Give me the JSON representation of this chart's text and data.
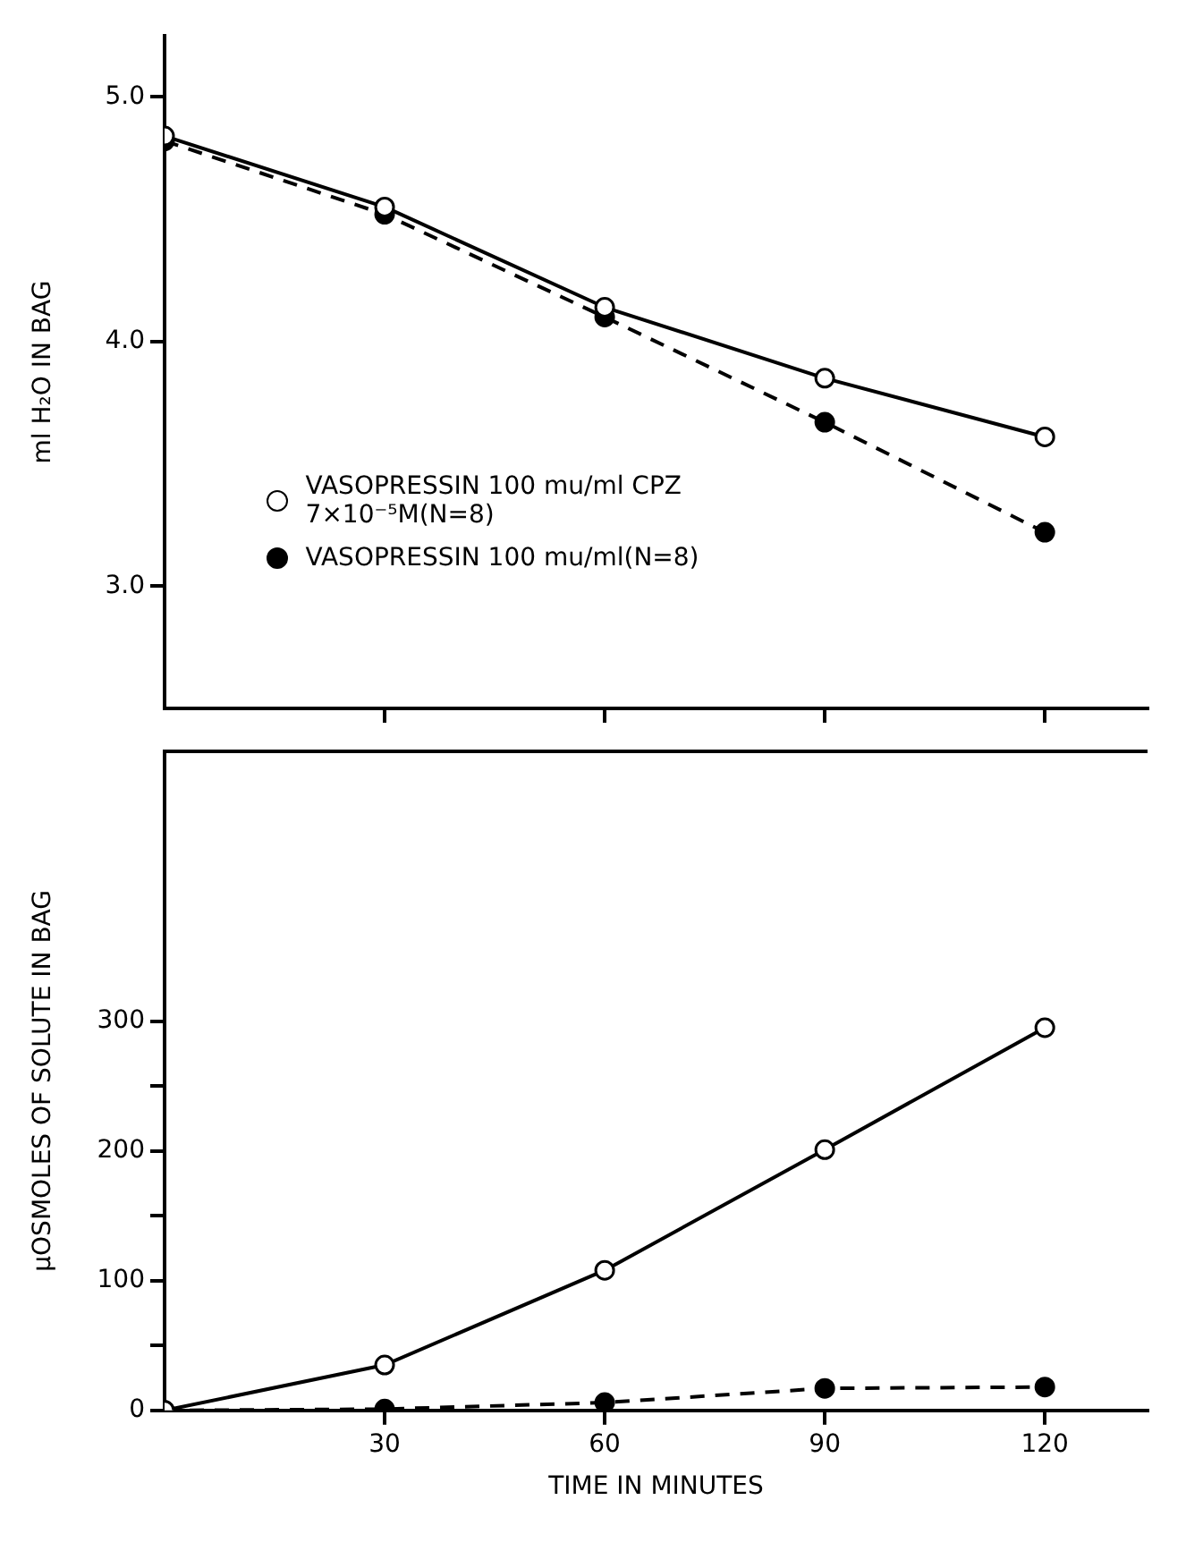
{
  "chart_data": [
    {
      "type": "line",
      "ylabel": "ml H₂O IN BAG",
      "x": [
        0,
        30,
        60,
        90,
        120
      ],
      "xlim": [
        0,
        134
      ],
      "xticks": [
        {
          "value": 30,
          "label": null
        },
        {
          "value": 60,
          "label": null
        },
        {
          "value": 90,
          "label": null
        },
        {
          "value": 120,
          "label": null
        }
      ],
      "ylim": [
        2.5,
        5.25
      ],
      "yticks": [
        {
          "value": 3,
          "label": "3.0"
        },
        {
          "value": 4,
          "label": "4.0"
        },
        {
          "value": 5,
          "label": "5.0"
        }
      ],
      "tick_labels": "y",
      "grid": false,
      "legend": "bottom left",
      "marker": "circle",
      "series": [
        {
          "name": "VASOPRESSIN  100 mu/ml CPZ  7×10⁻⁵M(N=8)",
          "color": "#000000",
          "line_style": "solid",
          "values": [
            4.84,
            4.55,
            4.14,
            3.85,
            3.61
          ]
        },
        {
          "name": "VASOPRESSIN  100 mu/ml(N=8)",
          "color": "#000000",
          "line_style": "dashed",
          "values": [
            4.82,
            4.52,
            4.1,
            3.67,
            3.22
          ]
        }
      ]
    },
    {
      "type": "line",
      "ylabel": "µOSMOLES OF SOLUTE IN BAG",
      "xlabel": "TIME IN MINUTES",
      "x": [
        0,
        30,
        60,
        90,
        120
      ],
      "xlim": [
        0,
        134
      ],
      "xticks": [
        30,
        60,
        90,
        120
      ],
      "ylim": [
        0,
        508
      ],
      "yticks": [
        0,
        {
          "value": 50,
          "label": null
        },
        100,
        {
          "value": 150,
          "label": null
        },
        200,
        {
          "value": 250,
          "label": null
        },
        300
      ],
      "grid": false,
      "legend": false,
      "marker": "circle",
      "series": [
        {
          "color": "#000000",
          "line_style": "solid",
          "values": [
            0,
            35,
            108,
            201,
            295
          ]
        },
        {
          "color": "#000000",
          "line_style": "dashed",
          "values": [
            0,
            1,
            6,
            17,
            18
          ]
        }
      ]
    }
  ]
}
